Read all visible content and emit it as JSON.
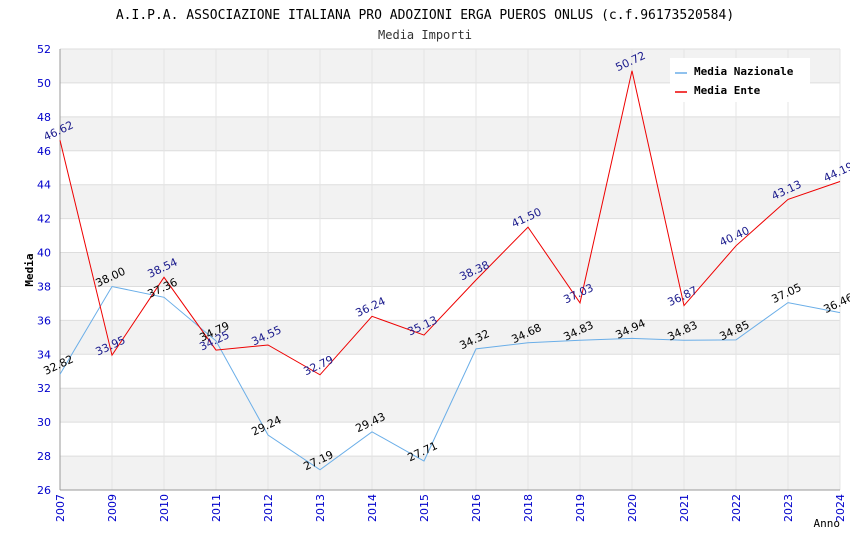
{
  "chart_data": {
    "type": "line",
    "title": "A.I.P.A. ASSOCIAZIONE ITALIANA PRO ADOZIONI ERGA PUEROS ONLUS (c.f.96173520584)",
    "subtitle": "Media Importi",
    "xlabel": "Anno",
    "ylabel": "Media",
    "ylim": [
      26,
      52
    ],
    "yticks": [
      26,
      28,
      30,
      32,
      34,
      36,
      38,
      40,
      42,
      44,
      46,
      48,
      50,
      52
    ],
    "categories": [
      "2007",
      "2009",
      "2010",
      "2011",
      "2012",
      "2013",
      "2014",
      "2015",
      "2016",
      "2018",
      "2019",
      "2020",
      "2021",
      "2022",
      "2023",
      "2024"
    ],
    "series": [
      {
        "name": "Media Nazionale",
        "color": "#6aaee8",
        "values": [
          32.82,
          38.0,
          37.36,
          34.79,
          29.24,
          27.19,
          29.43,
          27.71,
          34.32,
          34.68,
          34.83,
          34.94,
          34.83,
          34.85,
          37.05,
          36.46
        ],
        "labels": [
          "32.82",
          "38.00",
          "37.36",
          "34.79",
          "29.24",
          "27.19",
          "29.43",
          "27.71",
          "34.32",
          "34.68",
          "34.83",
          "34.94",
          "34.83",
          "34.85",
          "37.05",
          "36.46"
        ]
      },
      {
        "name": "Media Ente",
        "color": "#ee0000",
        "values": [
          46.62,
          33.95,
          38.54,
          34.25,
          34.55,
          32.79,
          36.24,
          35.13,
          38.38,
          41.5,
          37.03,
          50.72,
          36.87,
          40.4,
          43.13,
          44.19
        ],
        "labels": [
          "46.62",
          "33.95",
          "38.54",
          "34.25",
          "34.55",
          "32.79",
          "36.24",
          "35.13",
          "38.38",
          "41.50",
          "37.03",
          "50.72",
          "36.87",
          "40.40",
          "43.13",
          "44.19"
        ]
      }
    ],
    "grid": true,
    "legend_position": "top-right"
  }
}
